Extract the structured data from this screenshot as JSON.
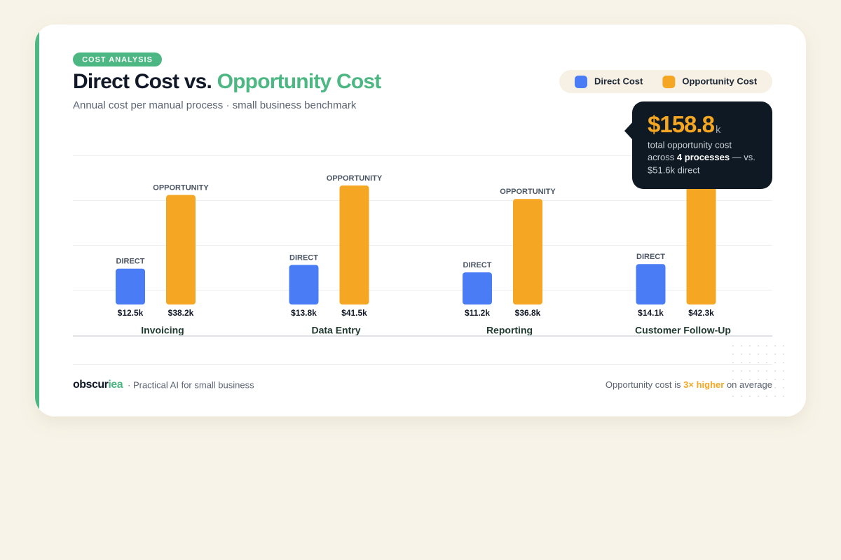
{
  "chart_data": {
    "type": "bar",
    "badge": "COST ANALYSIS",
    "title": "Direct Cost vs. ",
    "title_highlight": "Opportunity Cost",
    "subtitle": "Annual cost per manual process · small business benchmark",
    "categories": [
      "Invoicing",
      "Data Entry",
      "Reporting",
      "Customer Follow-Up"
    ],
    "series": [
      {
        "name": "Direct Cost",
        "short_label": "DIRECT",
        "color": "#4a7cf6",
        "values": [
          12.5,
          13.8,
          11.2,
          14.1
        ],
        "value_labels": [
          "$12.5k",
          "$13.8k",
          "$11.2k",
          "$14.1k"
        ]
      },
      {
        "name": "Opportunity Cost",
        "short_label": "OPPORTUNITY",
        "color": "#f5a623",
        "values": [
          38.2,
          41.5,
          36.8,
          42.3
        ],
        "value_labels": [
          "$38.2k",
          "$41.5k",
          "$36.8k",
          "$42.3k"
        ]
      }
    ],
    "ylim": [
      0,
      52
    ],
    "tooltip": {
      "total": "$158.8",
      "unit": "k",
      "line1": "total opportunity cost",
      "line2_start": "across ",
      "line2_bold": "4 processes",
      "line2_end": " — vs.",
      "line3": "$51.6k direct"
    },
    "footer": {
      "brand_start": "obscur",
      "brand_end": "iea",
      "tagline": "· Practical AI for small business",
      "note_start": "Opportunity cost is ",
      "note_highlight": "3× higher",
      "note_end": " on average"
    }
  }
}
